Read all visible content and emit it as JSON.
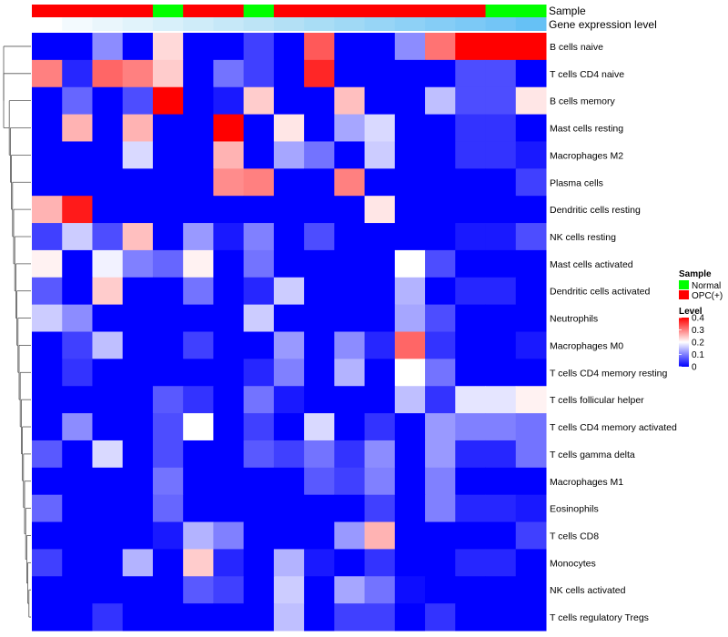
{
  "chart_data": {
    "type": "heatmap",
    "title": "",
    "annotation_labels": [
      "Sample",
      "Gene expression level"
    ],
    "sample_groups": [
      "OPC(+)",
      "OPC(+)",
      "OPC(+)",
      "OPC(+)",
      "Normal",
      "OPC(+)",
      "OPC(+)",
      "Normal",
      "OPC(+)",
      "OPC(+)",
      "OPC(+)",
      "OPC(+)",
      "OPC(+)",
      "OPC(+)",
      "OPC(+)",
      "Normal",
      "Normal"
    ],
    "expression_level_colors": [
      "#ffffff",
      "#f3fafe",
      "#eaf6fc",
      "#e1f3fb",
      "#d8f0fa",
      "#cfecf9",
      "#c6e8f8",
      "#bde4f6",
      "#b3e0f5",
      "#a9ddf5",
      "#a0d9f5",
      "#97d5f6",
      "#8ed1f6",
      "#85cdf6",
      "#7cc9f6",
      "#73c5f6",
      "#66c1f5"
    ],
    "rows": [
      "B cells naive",
      "T cells CD4 naive",
      "B cells memory",
      "Mast cells resting",
      "Macrophages M2",
      "Plasma cells",
      "Dendritic cells resting",
      "NK cells resting",
      "Mast cells activated",
      "Dendritic cells activated",
      "Neutrophils",
      "Macrophages M0",
      "T cells CD4 memory resting",
      "T cells follicular helper",
      "T cells CD4 memory activated",
      "T cells gamma delta",
      "Macrophages M1",
      "Eosinophils",
      "T cells CD8",
      "Monocytes",
      "NK cells activated",
      "T cells regulatory  Tregs"
    ],
    "values": [
      [
        0,
        0,
        0.11,
        0,
        0.23,
        0,
        0,
        0.05,
        0,
        0.33,
        0,
        0,
        0.11,
        0.31,
        0.4,
        0.4,
        0.4
      ],
      [
        0.3,
        0.03,
        0.32,
        0.3,
        0.24,
        0,
        0.09,
        0.05,
        0,
        0.37,
        0,
        0,
        0,
        0,
        0.06,
        0.06,
        0
      ],
      [
        0,
        0.08,
        0,
        0.06,
        0.4,
        0,
        0.02,
        0.24,
        0,
        0,
        0.25,
        0,
        0,
        0.15,
        0.06,
        0.06,
        0.22
      ],
      [
        0,
        0.26,
        0,
        0.26,
        0,
        0,
        0.4,
        0,
        0.22,
        0,
        0.13,
        0.17,
        0,
        0,
        0.04,
        0.04,
        0
      ],
      [
        0,
        0,
        0,
        0.17,
        0,
        0,
        0.26,
        0,
        0.13,
        0.09,
        0,
        0.16,
        0,
        0,
        0.04,
        0.04,
        0.02
      ],
      [
        0,
        0,
        0,
        0,
        0,
        0,
        0.29,
        0.3,
        0,
        0,
        0.3,
        0,
        0,
        0,
        0,
        0,
        0.05
      ],
      [
        0.26,
        0.38,
        0,
        0,
        0,
        0,
        0,
        0,
        0,
        0,
        0,
        0.22,
        0,
        0,
        0,
        0,
        0
      ],
      [
        0.05,
        0.16,
        0.06,
        0.25,
        0,
        0.12,
        0.02,
        0.1,
        0,
        0.06,
        0,
        0,
        0,
        0,
        0.02,
        0.02,
        0.06
      ],
      [
        0.21,
        0,
        0.19,
        0.1,
        0.08,
        0.21,
        0,
        0.09,
        0,
        0,
        0,
        0,
        0.2,
        0.06,
        0,
        0,
        0
      ],
      [
        0.07,
        0,
        0.24,
        0,
        0,
        0.09,
        0,
        0.03,
        0.16,
        0,
        0,
        0,
        0.14,
        0,
        0.03,
        0.03,
        0
      ],
      [
        0.16,
        0.11,
        0,
        0,
        0,
        0,
        0,
        0.16,
        0,
        0,
        0,
        0,
        0.13,
        0.06,
        0,
        0,
        0
      ],
      [
        0,
        0.05,
        0.15,
        0,
        0,
        0.05,
        0,
        0,
        0.12,
        0,
        0.11,
        0.03,
        0.32,
        0.04,
        0,
        0,
        0.02
      ],
      [
        0,
        0.04,
        0,
        0,
        0,
        0,
        0,
        0.03,
        0.1,
        0,
        0.14,
        0,
        0.2,
        0.09,
        0,
        0,
        0
      ],
      [
        0,
        0,
        0,
        0,
        0.07,
        0.04,
        0,
        0.09,
        0.02,
        0,
        0,
        0,
        0.15,
        0.04,
        0.18,
        0.18,
        0.21
      ],
      [
        0,
        0.11,
        0,
        0,
        0.06,
        0.2,
        0,
        0.05,
        0,
        0.17,
        0,
        0.04,
        0,
        0.12,
        0.1,
        0.1,
        0.09
      ],
      [
        0.07,
        0,
        0.17,
        0,
        0.06,
        0,
        0,
        0.07,
        0.05,
        0.09,
        0.04,
        0.11,
        0,
        0.12,
        0.03,
        0.03,
        0.09
      ],
      [
        0,
        0,
        0,
        0,
        0.09,
        0,
        0,
        0,
        0,
        0.07,
        0.05,
        0.1,
        0,
        0.1,
        0,
        0,
        0
      ],
      [
        0.08,
        0,
        0,
        0,
        0.08,
        0,
        0,
        0,
        0,
        0,
        0,
        0.05,
        0,
        0.1,
        0.03,
        0.03,
        0.02
      ],
      [
        0,
        0,
        0,
        0,
        0.02,
        0.14,
        0.1,
        0,
        0,
        0,
        0.12,
        0.26,
        0,
        0,
        0,
        0,
        0.05
      ],
      [
        0.05,
        0,
        0,
        0.14,
        0,
        0.24,
        0.03,
        0,
        0.14,
        0.02,
        0,
        0.04,
        0,
        0,
        0.03,
        0.03,
        0
      ],
      [
        0,
        0,
        0,
        0,
        0,
        0.07,
        0.05,
        0,
        0.16,
        0,
        0.13,
        0.09,
        0.01,
        0,
        0,
        0,
        0
      ],
      [
        0,
        0,
        0.04,
        0,
        0,
        0,
        0,
        0,
        0.15,
        0,
        0.05,
        0.05,
        0,
        0.04,
        0,
        0,
        0
      ]
    ],
    "legend": {
      "sample_title": "Sample",
      "sample_entries": [
        {
          "label": "Normal",
          "color": "#00ff00"
        },
        {
          "label": "OPC(+)",
          "color": "#ff0000"
        }
      ],
      "level_title": "Level",
      "level_ticks": [
        "0.4",
        "0.3",
        "0.2",
        "0.1",
        "0"
      ],
      "level_tick_values": [
        0.4,
        0.3,
        0.2,
        0.1,
        0
      ],
      "range": [
        0,
        0.4
      ]
    },
    "colors": {
      "low": "#0000ff",
      "mid": "#ffffff",
      "high": "#ff0000",
      "normal": "#00ff00",
      "opc": "#ff0000"
    }
  }
}
